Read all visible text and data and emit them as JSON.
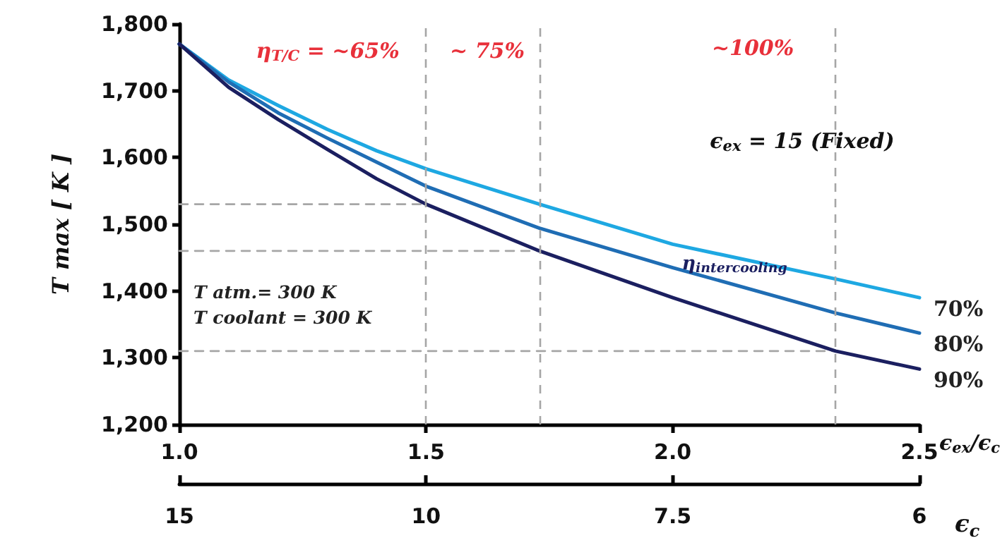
{
  "chart_data": {
    "type": "line",
    "ylabel": "T max [ K ]",
    "xlabel": "ϵ$_{ex}$/ϵ$_{c}$",
    "x2label": "ϵ$_{c}$",
    "xlim": [
      1.0,
      2.5
    ],
    "xticks": [
      {
        "value": 1.0,
        "label": "1.0"
      },
      1.5,
      {
        "value": 2.0,
        "label": "2.0"
      },
      2.5
    ],
    "ylim": [
      1200,
      1800
    ],
    "yticks": [
      {
        "value": 1200,
        "label": "1,200"
      },
      {
        "value": 1300,
        "label": "1,300"
      },
      {
        "value": 1400,
        "label": "1,400"
      },
      {
        "value": 1500,
        "label": "1,500"
      },
      {
        "value": 1600,
        "label": "1,600"
      },
      {
        "value": 1700,
        "label": "1,700"
      },
      {
        "value": 1800,
        "label": "1,800"
      }
    ],
    "grid": false,
    "legend": false,
    "marker": "none",
    "line_style": "solid",
    "series": [
      {
        "name": "70%",
        "color": "#1ea8e2",
        "x": [
          1.0,
          1.1,
          1.2,
          1.3,
          1.4,
          1.5,
          1.73,
          2.0,
          2.33,
          2.5
        ],
        "values": [
          1770,
          1716,
          1678,
          1642,
          1610,
          1583,
          1530,
          1470,
          1418,
          1390
        ]
      },
      {
        "name": "80%",
        "color": "#1f6db4",
        "x": [
          1.0,
          1.1,
          1.2,
          1.3,
          1.4,
          1.5,
          1.73,
          2.0,
          2.33,
          2.5
        ],
        "values": [
          1770,
          1713,
          1667,
          1629,
          1593,
          1557,
          1494,
          1435,
          1367,
          1337
        ]
      },
      {
        "name": "90%",
        "color": "#1b1f60",
        "x": [
          1.0,
          1.1,
          1.2,
          1.3,
          1.4,
          1.5,
          1.73,
          2.0,
          2.33,
          2.5
        ],
        "values": [
          1770,
          1705,
          1657,
          1612,
          1568,
          1530,
          1460,
          1390,
          1310,
          1283
        ]
      },
      {
        "color": "#a6a6a6",
        "line_style": "dashed",
        "x": [
          1.0,
          1.5
        ],
        "values": [
          1530,
          1530
        ]
      },
      {
        "color": "#a6a6a6",
        "line_style": "dashed",
        "x": [
          1.0,
          1.73
        ],
        "values": [
          1460,
          1460
        ]
      },
      {
        "color": "#a6a6a6",
        "line_style": "dashed",
        "x": [
          1.0,
          2.33
        ],
        "values": [
          1310,
          1310
        ]
      }
    ],
    "ref_lines": [
      {
        "axis": "x",
        "value": 1.5,
        "color": "#a6a6a6",
        "line_style": "dashed"
      },
      {
        "axis": "x",
        "value": 1.73,
        "color": "#a6a6a6",
        "line_style": "dashed"
      },
      {
        "axis": "x",
        "value": 2.33,
        "color": "#a6a6a6",
        "line_style": "dashed"
      }
    ],
    "annotations": [
      "η$_{T/C}$ = ~65%",
      "~ 75%",
      "~100%",
      "ϵ$_{ex}$ = 15 (Fixed)",
      "T atm.= 300 K",
      "T coolant = 300 K",
      "η$_{intercooling}$",
      "15",
      "10",
      "7.5",
      "6"
    ]
  }
}
